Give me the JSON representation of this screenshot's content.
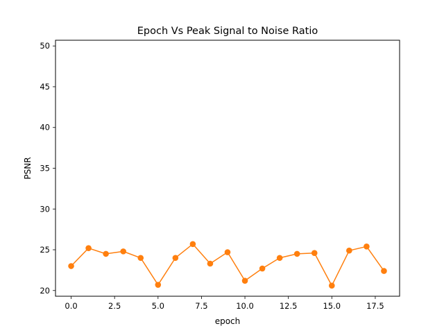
{
  "chart_data": {
    "type": "line",
    "title": "Epoch Vs Peak Signal to Noise Ratio",
    "xlabel": "epoch",
    "ylabel": "PSNR",
    "xlim": [
      -0.9,
      18.9
    ],
    "ylim": [
      19.3,
      50.7
    ],
    "xticks": [
      0.0,
      2.5,
      5.0,
      7.5,
      10.0,
      12.5,
      15.0,
      17.5
    ],
    "xtick_labels": [
      "0.0",
      "2.5",
      "5.0",
      "7.5",
      "10.0",
      "12.5",
      "15.0",
      "17.5"
    ],
    "yticks": [
      20,
      25,
      30,
      35,
      40,
      45,
      50
    ],
    "ytick_labels": [
      "20",
      "25",
      "30",
      "35",
      "40",
      "45",
      "50"
    ],
    "grid": false,
    "series": [
      {
        "color": "#ff7f0e",
        "marker": "circle",
        "x": [
          0,
          1,
          2,
          3,
          4,
          5,
          6,
          7,
          8,
          9,
          10,
          11,
          12,
          13,
          14,
          15,
          16,
          17,
          18
        ],
        "values": [
          23.0,
          25.2,
          24.5,
          24.8,
          24.0,
          20.7,
          24.0,
          25.7,
          23.3,
          24.7,
          21.2,
          22.7,
          24.0,
          24.5,
          24.6,
          20.6,
          24.9,
          25.4,
          22.4
        ]
      }
    ]
  }
}
